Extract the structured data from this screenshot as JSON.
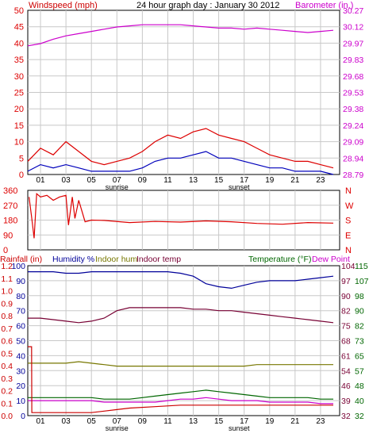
{
  "colors": {
    "wind_gust": "#dd0000",
    "wind_avg": "#0000bb",
    "barometer": "#cc00cc",
    "direction": "#dd0000",
    "rainfall": "#cc0000",
    "humidity": "#000099",
    "indoor_hum": "#777700",
    "indoor_temp": "#770033",
    "temperature": "#006600",
    "dew_point": "#cc00cc",
    "grid": "#c8c8c8",
    "axis_black": "#000000"
  },
  "chart_data": [
    {
      "type": "line",
      "title": "24 hour graph day : January 30 2012",
      "y_left_label": "Windspeed (mph)",
      "y_right_label": "Barometer (in.)",
      "y_left_ticks": [
        "0",
        "5",
        "10",
        "15",
        "20",
        "25",
        "30",
        "35",
        "40",
        "45",
        "50"
      ],
      "y_right_ticks": [
        "28.79",
        "28.94",
        "29.09",
        "29.24",
        "29.38",
        "29.53",
        "29.68",
        "29.83",
        "29.97",
        "30.12",
        "30.27"
      ],
      "x_ticks": [
        "01",
        "03",
        "05",
        "07",
        "09",
        "11",
        "13",
        "15",
        "17",
        "19",
        "21",
        "23"
      ],
      "x_annotations": [
        {
          "label": "sunrise",
          "x": 7.0
        },
        {
          "label": "sunset",
          "x": 16.6
        }
      ],
      "ylim_left": [
        0,
        50
      ],
      "ylim_right": [
        28.79,
        30.27
      ],
      "xlim": [
        0,
        24.5
      ],
      "series": [
        {
          "key": "barometer",
          "axis": "right",
          "x": [
            0,
            1,
            2,
            3,
            4,
            5,
            6,
            7,
            8,
            9,
            10,
            11,
            12,
            13,
            14,
            15,
            16,
            17,
            18,
            19,
            20,
            21,
            22,
            23,
            24
          ],
          "values": [
            29.95,
            29.97,
            30.01,
            30.04,
            30.06,
            30.08,
            30.1,
            30.12,
            30.13,
            30.14,
            30.14,
            30.14,
            30.14,
            30.13,
            30.12,
            30.11,
            30.11,
            30.1,
            30.11,
            30.1,
            30.09,
            30.08,
            30.07,
            30.08,
            30.09
          ]
        },
        {
          "key": "wind_gust",
          "axis": "left",
          "x": [
            0,
            1,
            2,
            3,
            4,
            5,
            6,
            7,
            8,
            9,
            10,
            11,
            12,
            13,
            14,
            15,
            16,
            17,
            18,
            19,
            20,
            21,
            22,
            23,
            24
          ],
          "values": [
            4,
            8,
            6,
            10,
            7,
            4,
            3,
            4,
            5,
            7,
            10,
            12,
            11,
            13,
            14,
            12,
            11,
            10,
            8,
            6,
            5,
            4,
            4,
            3,
            2
          ]
        },
        {
          "key": "wind_avg",
          "axis": "left",
          "x": [
            0,
            1,
            2,
            3,
            4,
            5,
            6,
            7,
            8,
            9,
            10,
            11,
            12,
            13,
            14,
            15,
            16,
            17,
            18,
            19,
            20,
            21,
            22,
            23,
            24
          ],
          "values": [
            1,
            3,
            2,
            3,
            2,
            1,
            1,
            1,
            1,
            2,
            4,
            5,
            5,
            6,
            7,
            5,
            5,
            4,
            3,
            2,
            2,
            1,
            1,
            1,
            0
          ]
        }
      ]
    },
    {
      "type": "line",
      "y_left_ticks": [
        "0",
        "90",
        "180",
        "270",
        "360"
      ],
      "y_right_ticks": [
        "N",
        "W",
        "S",
        "E",
        "N"
      ],
      "ylim": [
        0,
        360
      ],
      "xlim": [
        0,
        24.5
      ],
      "series": [
        {
          "key": "direction",
          "x": [
            0.1,
            0.3,
            0.5,
            0.7,
            1,
            1.5,
            2,
            2.5,
            3,
            3.2,
            3.5,
            3.7,
            4,
            4.5,
            5,
            6,
            8,
            10,
            12,
            14,
            16,
            18,
            20,
            22,
            24
          ],
          "values": [
            320,
            200,
            70,
            340,
            320,
            330,
            300,
            320,
            330,
            150,
            320,
            190,
            300,
            170,
            180,
            178,
            165,
            172,
            168,
            175,
            170,
            160,
            155,
            165,
            162
          ]
        }
      ]
    },
    {
      "type": "line",
      "legend": [
        "Rainfall (in)",
        "Humidity %",
        "Indoor hum",
        "Indoor temp",
        "Temperature (°F)",
        "Dew Point"
      ],
      "y_rain_ticks": [
        "0.0",
        "0.1",
        "0.2",
        "0.3",
        "0.4",
        "0.5",
        "0.6",
        "0.7",
        "0.8",
        "0.9",
        "1.0",
        "1.1",
        "1.2"
      ],
      "y_hum_ticks": [
        "0",
        "10",
        "20",
        "30",
        "40",
        "50",
        "60",
        "70",
        "80",
        "90",
        "100"
      ],
      "y_temp_ticks_1": [
        "32",
        "40",
        "48",
        "57",
        "65",
        "73",
        "82",
        "90",
        "98",
        "107",
        "115"
      ],
      "y_temp_ticks_2": [
        "32",
        "39",
        "46",
        "54",
        "61",
        "68",
        "75",
        "82",
        "90",
        "97",
        "104"
      ],
      "ylim_humidity": [
        0,
        100
      ],
      "xlim": [
        0,
        24.5
      ],
      "x_ticks": [
        "01",
        "03",
        "05",
        "07",
        "09",
        "11",
        "13",
        "15",
        "17",
        "19",
        "21",
        "23"
      ],
      "x_annotations": [
        {
          "label": "sunrise",
          "x": 7.0
        },
        {
          "label": "sunset",
          "x": 16.6
        }
      ],
      "series": [
        {
          "key": "humidity",
          "x": [
            0,
            1,
            2,
            3,
            4,
            5,
            6,
            7,
            8,
            9,
            10,
            11,
            12,
            13,
            14,
            15,
            16,
            17,
            18,
            19,
            20,
            21,
            22,
            23,
            24
          ],
          "values": [
            96,
            96,
            96,
            95,
            95,
            96,
            96,
            96,
            96,
            96,
            96,
            96,
            95,
            93,
            88,
            86,
            85,
            87,
            89,
            90,
            90,
            90,
            91,
            92,
            93
          ]
        },
        {
          "key": "indoor_temp",
          "x": [
            0,
            1,
            2,
            3,
            4,
            5,
            6,
            7,
            8,
            9,
            10,
            11,
            12,
            13,
            14,
            15,
            16,
            17,
            18,
            19,
            20,
            21,
            22,
            23,
            24
          ],
          "values": [
            65,
            65,
            64,
            63,
            62,
            63,
            65,
            70,
            72,
            72,
            72,
            72,
            72,
            71,
            71,
            70,
            70,
            69,
            68,
            67,
            66,
            65,
            64,
            63,
            62
          ]
        },
        {
          "key": "indoor_hum",
          "x": [
            0,
            1,
            2,
            3,
            4,
            5,
            6,
            7,
            8,
            9,
            10,
            11,
            12,
            13,
            14,
            15,
            16,
            17,
            18,
            19,
            20,
            21,
            22,
            23,
            24
          ],
          "values": [
            35,
            35,
            35,
            35,
            36,
            35,
            34,
            33,
            33,
            33,
            33,
            33,
            33,
            33,
            33,
            33,
            33,
            33,
            34,
            34,
            34,
            34,
            34,
            34,
            34
          ]
        },
        {
          "key": "temperature",
          "x": [
            0,
            1,
            2,
            3,
            4,
            5,
            6,
            7,
            8,
            9,
            10,
            11,
            12,
            13,
            14,
            15,
            16,
            17,
            18,
            19,
            20,
            21,
            22,
            23,
            24
          ],
          "values": [
            12,
            12,
            12,
            12,
            12,
            12,
            11,
            11,
            11,
            12,
            13,
            14,
            15,
            16,
            17,
            16,
            15,
            14,
            13,
            12,
            12,
            12,
            12,
            11,
            11
          ]
        },
        {
          "key": "dew_point",
          "x": [
            0,
            1,
            2,
            3,
            4,
            5,
            6,
            7,
            8,
            9,
            10,
            11,
            12,
            13,
            14,
            15,
            16,
            17,
            18,
            19,
            20,
            21,
            22,
            23,
            24
          ],
          "values": [
            10,
            10,
            10,
            10,
            10,
            10,
            9,
            9,
            9,
            9,
            9,
            10,
            11,
            11,
            12,
            11,
            10,
            10,
            10,
            9,
            9,
            9,
            9,
            8,
            8
          ]
        },
        {
          "key": "rainfall",
          "x": [
            0,
            0.3,
            0.32,
            1,
            5,
            6,
            7,
            8,
            10,
            12,
            16,
            20,
            24
          ],
          "values": [
            46,
            46,
            2,
            2,
            2,
            3,
            4,
            5,
            6,
            7,
            7,
            7,
            7
          ]
        }
      ]
    }
  ]
}
